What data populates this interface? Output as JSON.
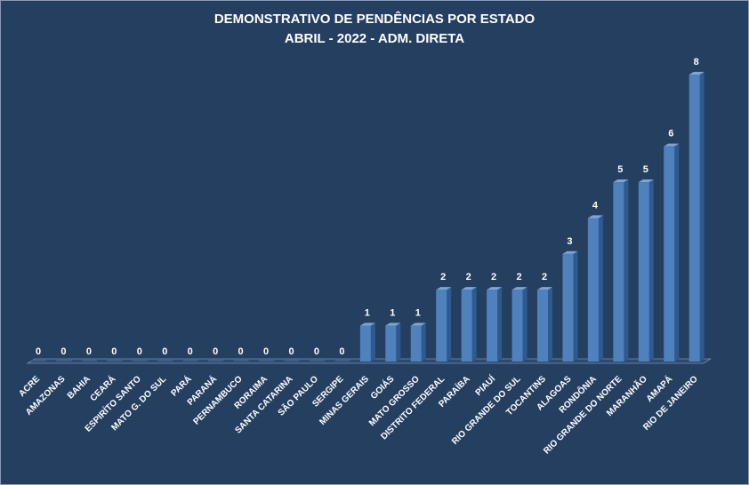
{
  "chart_data": {
    "type": "bar",
    "title": "DEMONSTRATIVO DE PENDÊNCIAS POR ESTADO",
    "subtitle": "ABRIL - 2022 - ADM. DIRETA",
    "categories": [
      "ACRE",
      "AMAZONAS",
      "BAHIA",
      "CEARÁ",
      "ESPIRÍTO SANTO",
      "MATO G. DO SUL",
      "PARÁ",
      "PARANÁ",
      "PERNAMBUCO",
      "RORAIMA",
      "SANTA CATARINA",
      "SÃO PAULO",
      "SERGIPE",
      "MINAS GERAIS",
      "GOIÁS",
      "MATO GROSSO",
      "DISTRITO FEDERAL",
      "PARAÍBA",
      "PIAUÍ",
      "RIO GRANDE DO SUL",
      "TOCANTINS",
      "ALAGOAS",
      "RONDÔNIA",
      "RIO GRANDE DO NORTE",
      "MARANHÃO",
      "AMAPÁ",
      "RIO DE JANEIRO"
    ],
    "values": [
      0,
      0,
      0,
      0,
      0,
      0,
      0,
      0,
      0,
      0,
      0,
      0,
      0,
      1,
      1,
      1,
      2,
      2,
      2,
      2,
      2,
      3,
      4,
      5,
      5,
      6,
      8
    ],
    "data_labels": true,
    "ylim": [
      0,
      8
    ],
    "grid": false,
    "legend": "none",
    "colors": {
      "background": "#243f60",
      "bar_front": "#4f81bd",
      "bar_side": "#2f5a8f",
      "bar_top": "#7fa4d4",
      "text": "#ffffff"
    }
  }
}
